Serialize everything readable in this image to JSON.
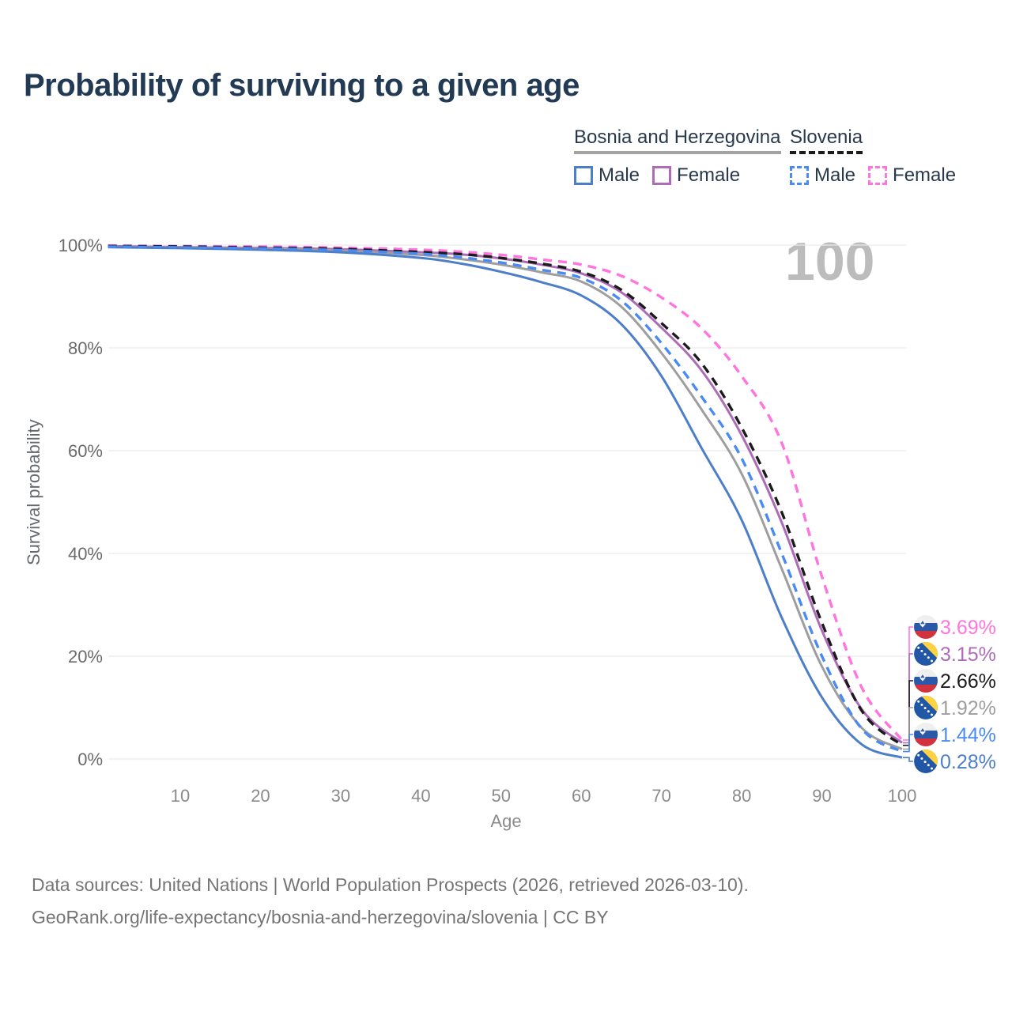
{
  "title": "Probability of surviving to a given age",
  "watermark": "100",
  "legend": {
    "groups": [
      {
        "label": "Bosnia and Herzegovina",
        "line_style": "solid",
        "line_color": "#a3a3a3",
        "items": [
          {
            "label": "Male",
            "color": "#4c7ec9",
            "dashed": false
          },
          {
            "label": "Female",
            "color": "#ae6cb8",
            "dashed": false
          }
        ]
      },
      {
        "label": "Slovenia",
        "line_style": "dashed",
        "line_color": "#1b1b1b",
        "items": [
          {
            "label": "Male",
            "color": "#4a8af3",
            "dashed": true
          },
          {
            "label": "Female",
            "color": "#ff74df",
            "dashed": true
          }
        ]
      }
    ]
  },
  "chart_data": {
    "type": "line",
    "title": "Probability of surviving to a given age",
    "xlabel": "Age",
    "ylabel": "Survival probability",
    "xlim": [
      1,
      100
    ],
    "ylim": [
      0,
      100
    ],
    "grid": "horizontal",
    "legend_position": "top-right",
    "x_ticks": [
      10,
      20,
      30,
      40,
      50,
      60,
      70,
      80,
      90,
      100
    ],
    "y_ticks": [
      {
        "value": 100,
        "label": "100%"
      },
      {
        "value": 80,
        "label": "80%"
      },
      {
        "value": 60,
        "label": "60%"
      },
      {
        "value": 40,
        "label": "40%"
      },
      {
        "value": 20,
        "label": "20%"
      },
      {
        "value": 0,
        "label": "0%"
      }
    ],
    "x": [
      1,
      10,
      20,
      30,
      40,
      45,
      50,
      55,
      60,
      65,
      70,
      75,
      80,
      85,
      90,
      95,
      100
    ],
    "series": [
      {
        "id": "slovenia-female",
        "name": "Slovenia — Female",
        "country": "slovenia",
        "sex": "female",
        "color": "#ff74df",
        "dashed": true,
        "end_label": "3.69%",
        "values": [
          99.9,
          99.8,
          99.7,
          99.5,
          99.1,
          98.7,
          98.1,
          97.2,
          96.2,
          94.0,
          89.8,
          83.8,
          74.5,
          61.5,
          35.5,
          13.8,
          3.69
        ]
      },
      {
        "id": "bosnia-female",
        "name": "Bosnia and Herzegovina — Female",
        "country": "bosnia",
        "sex": "female",
        "color": "#ae6cb8",
        "dashed": false,
        "end_label": "3.15%",
        "values": [
          99.8,
          99.6,
          99.45,
          99.2,
          98.6,
          98.2,
          97.4,
          96.2,
          94.5,
          90.8,
          83.9,
          75.6,
          63.0,
          46.0,
          25.0,
          9.6,
          3.15
        ]
      },
      {
        "id": "slovenia-both",
        "name": "Slovenia — Both sexes",
        "country": "slovenia",
        "sex": "both",
        "color": "#1b1b1b",
        "dashed": true,
        "end_label": "2.66%",
        "values": [
          99.8,
          99.7,
          99.5,
          99.25,
          98.65,
          98.25,
          97.5,
          96.4,
          94.8,
          91.3,
          84.8,
          77.0,
          64.5,
          48.0,
          26.5,
          9.3,
          2.66
        ]
      },
      {
        "id": "bosnia-both",
        "name": "Bosnia and Herzegovina — Both sexes",
        "country": "bosnia",
        "sex": "both",
        "color": "#9e9e9e",
        "dashed": false,
        "end_label": "1.92%",
        "values": [
          99.65,
          99.5,
          99.3,
          98.9,
          98.1,
          97.3,
          96.2,
          94.7,
          92.9,
          88.0,
          79.0,
          68.0,
          55.5,
          37.0,
          18.0,
          6.0,
          1.92
        ]
      },
      {
        "id": "slovenia-male",
        "name": "Slovenia — Male",
        "country": "slovenia",
        "sex": "male",
        "color": "#4a8af3",
        "dashed": true,
        "end_label": "1.44%",
        "values": [
          99.7,
          99.55,
          99.35,
          99.0,
          98.3,
          97.6,
          96.6,
          95.2,
          93.6,
          89.2,
          80.9,
          70.5,
          58.5,
          40.0,
          20.0,
          5.8,
          1.44
        ]
      },
      {
        "id": "bosnia-male",
        "name": "Bosnia and Herzegovina — Male",
        "country": "bosnia",
        "sex": "male",
        "color": "#4c7ec9",
        "dashed": false,
        "end_label": "0.28%",
        "values": [
          99.6,
          99.4,
          99.1,
          98.6,
          97.5,
          96.4,
          94.8,
          92.8,
          90.2,
          84.6,
          74.5,
          60.5,
          46.5,
          27.5,
          12.0,
          2.8,
          0.28
        ]
      }
    ]
  },
  "footer": {
    "line1": "Data sources: United Nations | World Population Prospects (2026, retrieved 2026-03-10).",
    "line2": "GeoRank.org/life-expectancy/bosnia-and-herzegovina/slovenia | CC BY"
  }
}
